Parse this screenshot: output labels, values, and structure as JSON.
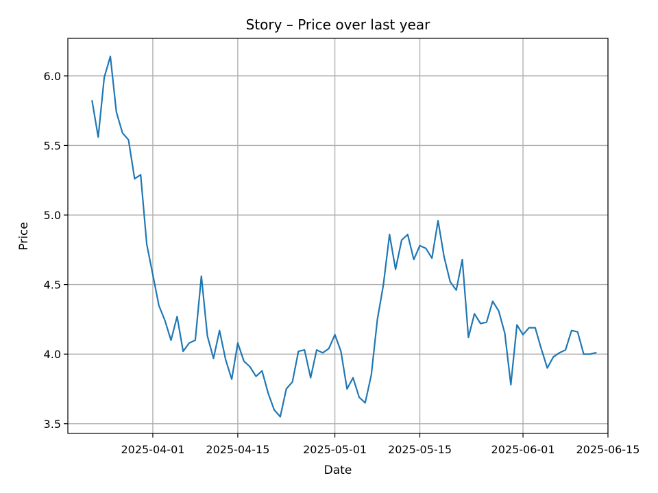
{
  "chart_data": {
    "type": "line",
    "title": "Story – Price over last year",
    "xlabel": "Date",
    "ylabel": "Price",
    "x_tick_labels": [
      "2025-04-01",
      "2025-04-15",
      "2025-05-01",
      "2025-05-15",
      "2025-06-01",
      "2025-06-15"
    ],
    "y_tick_labels": [
      "3.5",
      "4.0",
      "4.5",
      "5.0",
      "5.5",
      "6.0"
    ],
    "xlim": [
      "2025-03-18",
      "2025-06-15"
    ],
    "ylim": [
      3.43,
      6.27
    ],
    "grid": true,
    "line_color": "#1f77b4",
    "series": [
      {
        "x": [
          "2025-03-22",
          "2025-03-23",
          "2025-03-24",
          "2025-03-25",
          "2025-03-26",
          "2025-03-27",
          "2025-03-28",
          "2025-03-29",
          "2025-03-30",
          "2025-03-31",
          "2025-04-01",
          "2025-04-02",
          "2025-04-03",
          "2025-04-04",
          "2025-04-05",
          "2025-04-06",
          "2025-04-07",
          "2025-04-08",
          "2025-04-09",
          "2025-04-10",
          "2025-04-11",
          "2025-04-12",
          "2025-04-13",
          "2025-04-14",
          "2025-04-15",
          "2025-04-16",
          "2025-04-17",
          "2025-04-18",
          "2025-04-19",
          "2025-04-20",
          "2025-04-21",
          "2025-04-22",
          "2025-04-23",
          "2025-04-24",
          "2025-04-25",
          "2025-04-26",
          "2025-04-27",
          "2025-04-28",
          "2025-04-29",
          "2025-04-30",
          "2025-05-01",
          "2025-05-02",
          "2025-05-03",
          "2025-05-04",
          "2025-05-05",
          "2025-05-06",
          "2025-05-07",
          "2025-05-08",
          "2025-05-09",
          "2025-05-10",
          "2025-05-11",
          "2025-05-12",
          "2025-05-13",
          "2025-05-14",
          "2025-05-15",
          "2025-05-16",
          "2025-05-17",
          "2025-05-18",
          "2025-05-19",
          "2025-05-20",
          "2025-05-21",
          "2025-05-22",
          "2025-05-23",
          "2025-05-24",
          "2025-05-25",
          "2025-05-26",
          "2025-05-27",
          "2025-05-28",
          "2025-05-29",
          "2025-05-30",
          "2025-05-31",
          "2025-06-01",
          "2025-06-02",
          "2025-06-03",
          "2025-06-04",
          "2025-06-05",
          "2025-06-06",
          "2025-06-07",
          "2025-06-08",
          "2025-06-09",
          "2025-06-10",
          "2025-06-11",
          "2025-06-12",
          "2025-06-13"
        ],
        "y": [
          5.82,
          5.56,
          5.99,
          6.14,
          5.74,
          5.59,
          5.54,
          5.26,
          5.29,
          4.79,
          4.57,
          4.35,
          4.24,
          4.1,
          4.27,
          4.02,
          4.08,
          4.1,
          4.56,
          4.13,
          3.97,
          4.17,
          3.96,
          3.82,
          4.08,
          3.95,
          3.91,
          3.84,
          3.88,
          3.72,
          3.6,
          3.55,
          3.75,
          3.8,
          4.02,
          4.03,
          3.83,
          4.03,
          4.01,
          4.04,
          4.14,
          4.02,
          3.75,
          3.83,
          3.69,
          3.65,
          3.85,
          4.25,
          4.5,
          4.86,
          4.61,
          4.82,
          4.86,
          4.68,
          4.78,
          4.76,
          4.69,
          4.96,
          4.7,
          4.52,
          4.46,
          4.68,
          4.12,
          4.29,
          4.22,
          4.23,
          4.38,
          4.31,
          4.15,
          3.78,
          4.21,
          4.14,
          4.19,
          4.19,
          4.04,
          3.9,
          3.98,
          4.01,
          4.03,
          4.17,
          4.16,
          4.0,
          4.0,
          4.01
        ]
      }
    ]
  }
}
